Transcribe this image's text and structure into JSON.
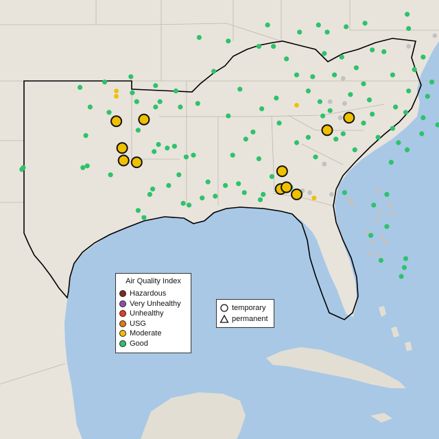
{
  "legend": {
    "title": "Air Quality Index",
    "categories": [
      {
        "label": "Hazardous",
        "color": "#7e2a2a"
      },
      {
        "label": "Very Unhealthy",
        "color": "#8e4fb0"
      },
      {
        "label": "Unhealthy",
        "color": "#e0402a"
      },
      {
        "label": "USG",
        "color": "#e07b12"
      },
      {
        "label": "Moderate",
        "color": "#f0c000"
      },
      {
        "label": "Good",
        "color": "#2ec26b"
      }
    ]
  },
  "monitor_types": {
    "temporary_label": "temporary",
    "permanent_label": "permanent"
  },
  "colors": {
    "land": "#e8e4dc",
    "water": "#a8c8e6",
    "inactive_monitor": "#c2c2c2"
  },
  "map_data": {
    "region": "Southeastern United States",
    "monitors_good": [
      [
        -102.5,
        36.3
      ],
      [
        -100.8,
        36.6
      ],
      [
        -99.0,
        36.9
      ],
      [
        -97.3,
        36.4
      ],
      [
        -98.9,
        36.0
      ],
      [
        -97.0,
        35.5
      ],
      [
        -97.3,
        35.2
      ],
      [
        -98.6,
        35.5
      ],
      [
        -95.9,
        36.1
      ],
      [
        -95.6,
        35.2
      ],
      [
        -101.8,
        35.2
      ],
      [
        -100.5,
        34.9
      ],
      [
        -102.1,
        33.6
      ],
      [
        -98.5,
        33.9
      ],
      [
        -96.5,
        32.9
      ],
      [
        -97.4,
        32.7
      ],
      [
        -97.1,
        33.1
      ],
      [
        -96.0,
        33.0
      ],
      [
        -95.2,
        32.4
      ],
      [
        -94.7,
        32.5
      ],
      [
        -99.5,
        32.4
      ],
      [
        -100.4,
        31.4
      ],
      [
        -102.0,
        31.9
      ],
      [
        -102.3,
        31.8
      ],
      [
        -106.4,
        31.8
      ],
      [
        -106.5,
        31.7
      ],
      [
        -97.7,
        30.3
      ],
      [
        -98.5,
        29.4
      ],
      [
        -95.4,
        29.8
      ],
      [
        -95.0,
        29.7
      ],
      [
        -94.1,
        30.1
      ],
      [
        -93.2,
        30.2
      ],
      [
        -91.2,
        30.4
      ],
      [
        -90.1,
        30.0
      ],
      [
        -89.9,
        30.3
      ],
      [
        -90.2,
        32.3
      ],
      [
        -91.1,
        33.4
      ],
      [
        -92.3,
        34.7
      ],
      [
        -94.4,
        35.4
      ],
      [
        -90.0,
        35.1
      ],
      [
        -89.0,
        35.7
      ],
      [
        -86.8,
        36.1
      ],
      [
        -85.3,
        35.0
      ],
      [
        -83.9,
        35.9
      ],
      [
        -82.6,
        35.6
      ],
      [
        -80.8,
        35.2
      ],
      [
        -79.9,
        36.1
      ],
      [
        -78.6,
        35.8
      ],
      [
        -77.9,
        34.2
      ],
      [
        -79.0,
        33.7
      ],
      [
        -80.0,
        32.8
      ],
      [
        -81.1,
        32.1
      ],
      [
        -81.4,
        30.3
      ],
      [
        -82.3,
        29.7
      ],
      [
        -81.4,
        28.5
      ],
      [
        -82.5,
        28.0
      ],
      [
        -80.2,
        26.2
      ],
      [
        -80.1,
        26.7
      ],
      [
        -80.4,
        25.7
      ],
      [
        -81.8,
        26.6
      ],
      [
        -84.3,
        30.4
      ],
      [
        -86.3,
        32.4
      ],
      [
        -86.8,
        33.5
      ],
      [
        -87.6,
        33.2
      ],
      [
        -88.0,
        30.7
      ],
      [
        -85.8,
        34.7
      ],
      [
        -84.4,
        33.7
      ],
      [
        -83.6,
        32.8
      ],
      [
        -82.0,
        33.5
      ],
      [
        -81.0,
        34.0
      ],
      [
        -80.1,
        34.9
      ],
      [
        -84.5,
        38.0
      ],
      [
        -85.7,
        38.2
      ],
      [
        -86.5,
        36.9
      ],
      [
        -82.4,
        38.4
      ],
      [
        -81.6,
        38.3
      ],
      [
        -80.0,
        40.4
      ],
      [
        -79.9,
        39.6
      ],
      [
        -78.9,
        38.0
      ],
      [
        -77.4,
        37.5
      ],
      [
        -76.3,
        36.9
      ],
      [
        -76.6,
        39.3
      ],
      [
        -77.0,
        38.9
      ],
      [
        -74.8,
        40.2
      ],
      [
        -75.1,
        39.9
      ],
      [
        -75.5,
        38.5
      ],
      [
        -82.9,
        39.9
      ],
      [
        -84.2,
        39.7
      ],
      [
        -86.1,
        39.8
      ],
      [
        -88.3,
        37.9
      ],
      [
        -89.2,
        38.6
      ],
      [
        -87.6,
        37.0
      ],
      [
        -90.2,
        38.6
      ],
      [
        -92.3,
        38.9
      ],
      [
        -93.3,
        37.2
      ],
      [
        -94.3,
        39.1
      ],
      [
        -91.5,
        36.2
      ],
      [
        -85.0,
        37.0
      ],
      [
        -83.5,
        37.4
      ],
      [
        -86.0,
        35.5
      ],
      [
        -88.8,
        34.3
      ],
      [
        -90.6,
        33.8
      ],
      [
        -92.0,
        32.5
      ],
      [
        -89.3,
        31.3
      ],
      [
        -84.9,
        33.4
      ],
      [
        -83.0,
        34.3
      ],
      [
        -82.4,
        34.8
      ],
      [
        -80.6,
        33.2
      ],
      [
        -78.9,
        34.6
      ],
      [
        -77.0,
        35.1
      ],
      [
        -76.7,
        34.7
      ],
      [
        -78.3,
        36.6
      ],
      [
        -77.6,
        38.4
      ],
      [
        -79.5,
        37.3
      ],
      [
        -81.0,
        37.0
      ],
      [
        -83.0,
        36.5
      ],
      [
        -85.5,
        39.4
      ],
      [
        -87.4,
        39.4
      ],
      [
        -89.6,
        39.8
      ]
    ],
    "monitors_good_temporary": [
      [
        -98.1,
        29.0
      ],
      [
        -97.5,
        30.6
      ],
      [
        -96.4,
        30.8
      ],
      [
        -95.7,
        31.4
      ],
      [
        -93.7,
        31.0
      ],
      [
        -92.5,
        30.8
      ],
      [
        -91.6,
        30.9
      ]
    ],
    "monitors_moderate_temporary": [
      [
        -100.0,
        34.4
      ],
      [
        -98.1,
        34.5
      ],
      [
        -99.6,
        32.9
      ],
      [
        -99.5,
        32.2
      ],
      [
        -98.6,
        32.1
      ],
      [
        -87.6,
        30.3
      ],
      [
        -88.7,
        30.6
      ],
      [
        -88.3,
        30.7
      ],
      [
        -88.6,
        31.6
      ],
      [
        -85.5,
        33.9
      ],
      [
        -84.0,
        34.6
      ]
    ],
    "monitors_moderate_permanent": [],
    "monitors_moderate_small": [
      [
        -100.0,
        36.1
      ],
      [
        -100.0,
        35.8
      ],
      [
        -87.6,
        35.3
      ],
      [
        -85.5,
        33.9
      ],
      [
        -86.4,
        30.1
      ],
      [
        -76.3,
        39.5
      ]
    ],
    "monitors_inactive": [
      [
        -82.7,
        28.2
      ],
      [
        -82.4,
        27.6
      ],
      [
        -82.6,
        27.0
      ],
      [
        -82.0,
        26.9
      ],
      [
        -81.5,
        27.6
      ],
      [
        -81.7,
        27.9
      ],
      [
        -82.1,
        28.8
      ],
      [
        -81.9,
        29.3
      ],
      [
        -81.2,
        29.7
      ],
      [
        -83.8,
        29.8
      ],
      [
        -84.0,
        30.0
      ],
      [
        -85.2,
        30.3
      ],
      [
        -86.7,
        30.4
      ],
      [
        -87.2,
        30.5
      ],
      [
        -85.7,
        32.0
      ],
      [
        -84.6,
        34.6
      ],
      [
        -84.3,
        35.4
      ],
      [
        -85.3,
        35.5
      ],
      [
        -84.4,
        36.8
      ],
      [
        -79.9,
        38.6
      ],
      [
        -78.1,
        39.2
      ],
      [
        -76.4,
        38.0
      ],
      [
        -75.9,
        37.4
      ],
      [
        -74.6,
        39.6
      ],
      [
        -77.4,
        35.6
      ],
      [
        -82.0,
        30.5
      ],
      [
        -81.1,
        29.2
      ]
    ]
  }
}
